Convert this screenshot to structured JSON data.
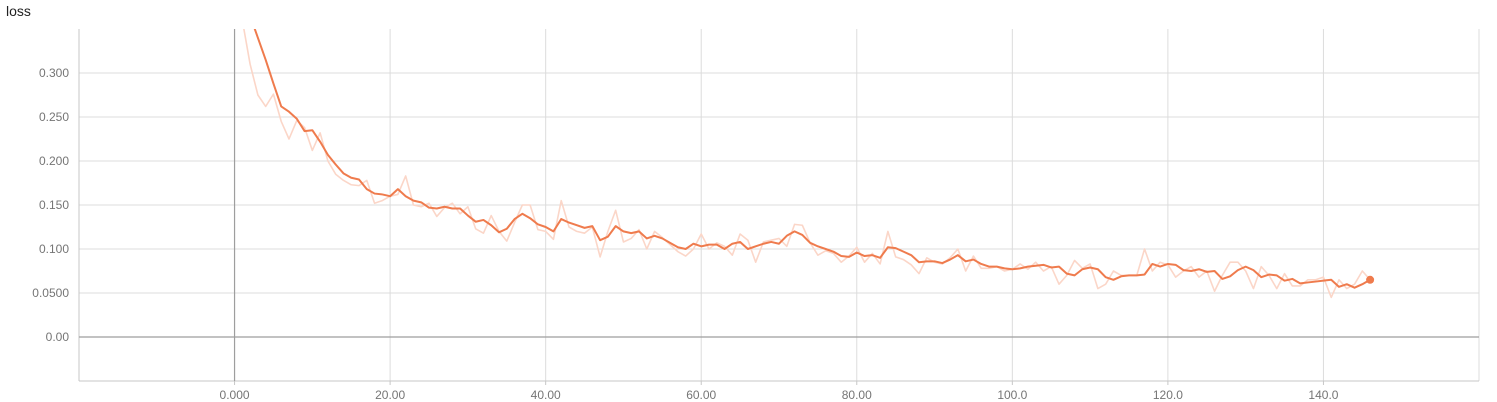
{
  "chart_data": {
    "type": "line",
    "title": "loss",
    "xlim": [
      -20,
      160
    ],
    "ylim": [
      -0.05,
      0.35
    ],
    "x_ticks": [
      0,
      20,
      40,
      60,
      80,
      100,
      120,
      140
    ],
    "x_tick_labels": [
      "0.000",
      "20.00",
      "40.00",
      "60.00",
      "80.00",
      "100.0",
      "120.0",
      "140.0"
    ],
    "y_ticks": [
      0,
      0.05,
      0.1,
      0.15,
      0.2,
      0.25,
      0.3
    ],
    "y_tick_labels": [
      "0.00",
      "0.0500",
      "0.100",
      "0.150",
      "0.200",
      "0.250",
      "0.300"
    ],
    "grid": true,
    "colors": {
      "raw": "#fbd6c8",
      "smoothed": "#ef7b4d",
      "grid": "#dcdcdc",
      "zero_axis": "#9e9e9e"
    },
    "series": [
      {
        "role": "raw",
        "x": [
          1,
          2,
          3,
          4,
          5,
          6,
          7,
          8,
          9,
          10,
          11,
          12,
          13,
          14,
          15,
          16,
          17,
          18,
          19,
          20,
          21,
          22,
          23,
          24,
          25,
          26,
          27,
          28,
          29,
          30,
          31,
          32,
          33,
          34,
          35,
          36,
          37,
          38,
          39,
          40,
          41,
          42,
          43,
          44,
          45,
          46,
          47,
          48,
          49,
          50,
          51,
          52,
          53,
          54,
          55,
          56,
          57,
          58,
          59,
          60,
          61,
          62,
          63,
          64,
          65,
          66,
          67,
          68,
          69,
          70,
          71,
          72,
          73,
          74,
          75,
          76,
          77,
          78,
          79,
          80,
          81,
          82,
          83,
          84,
          85,
          86,
          87,
          88,
          89,
          90,
          91,
          92,
          93,
          94,
          95,
          96,
          97,
          98,
          99,
          100,
          101,
          102,
          103,
          104,
          105,
          106,
          107,
          108,
          109,
          110,
          111,
          112,
          113,
          114,
          115,
          116,
          117,
          118,
          119,
          120,
          121,
          122,
          123,
          124,
          125,
          126,
          127,
          128,
          129,
          130,
          131,
          132,
          133,
          134,
          135,
          136,
          137,
          138,
          139,
          140,
          141,
          142,
          143,
          144,
          145,
          146
        ],
        "y": [
          0.36,
          0.31,
          0.275,
          0.262,
          0.276,
          0.245,
          0.225,
          0.246,
          0.238,
          0.212,
          0.232,
          0.2,
          0.185,
          0.178,
          0.173,
          0.172,
          0.178,
          0.152,
          0.155,
          0.16,
          0.162,
          0.183,
          0.15,
          0.148,
          0.152,
          0.137,
          0.147,
          0.152,
          0.14,
          0.148,
          0.123,
          0.118,
          0.138,
          0.12,
          0.109,
          0.13,
          0.15,
          0.15,
          0.122,
          0.12,
          0.111,
          0.155,
          0.125,
          0.12,
          0.118,
          0.125,
          0.091,
          0.12,
          0.144,
          0.108,
          0.112,
          0.122,
          0.1,
          0.12,
          0.113,
          0.105,
          0.097,
          0.092,
          0.1,
          0.117,
          0.1,
          0.107,
          0.103,
          0.093,
          0.117,
          0.11,
          0.085,
          0.108,
          0.11,
          0.112,
          0.103,
          0.128,
          0.127,
          0.107,
          0.093,
          0.098,
          0.095,
          0.085,
          0.092,
          0.102,
          0.085,
          0.095,
          0.083,
          0.12,
          0.091,
          0.088,
          0.082,
          0.072,
          0.09,
          0.085,
          0.083,
          0.09,
          0.1,
          0.075,
          0.092,
          0.078,
          0.078,
          0.08,
          0.075,
          0.077,
          0.083,
          0.077,
          0.085,
          0.075,
          0.08,
          0.06,
          0.07,
          0.087,
          0.078,
          0.083,
          0.055,
          0.06,
          0.075,
          0.07,
          0.07,
          0.07,
          0.1,
          0.075,
          0.085,
          0.082,
          0.068,
          0.075,
          0.08,
          0.068,
          0.075,
          0.052,
          0.07,
          0.085,
          0.085,
          0.075,
          0.055,
          0.08,
          0.07,
          0.055,
          0.072,
          0.058,
          0.058,
          0.065,
          0.065,
          0.068,
          0.045,
          0.065,
          0.055,
          0.06,
          0.075,
          0.065
        ]
      },
      {
        "role": "smoothed",
        "x": [
          1,
          2,
          3,
          4,
          5,
          6,
          7,
          8,
          9,
          10,
          11,
          12,
          13,
          14,
          15,
          16,
          17,
          18,
          19,
          20,
          21,
          22,
          23,
          24,
          25,
          26,
          27,
          28,
          29,
          30,
          31,
          32,
          33,
          34,
          35,
          36,
          37,
          38,
          39,
          40,
          41,
          42,
          43,
          44,
          45,
          46,
          47,
          48,
          49,
          50,
          51,
          52,
          53,
          54,
          55,
          56,
          57,
          58,
          59,
          60,
          61,
          62,
          63,
          64,
          65,
          66,
          67,
          68,
          69,
          70,
          71,
          72,
          73,
          74,
          75,
          76,
          77,
          78,
          79,
          80,
          81,
          82,
          83,
          84,
          85,
          86,
          87,
          88,
          89,
          90,
          91,
          92,
          93,
          94,
          95,
          96,
          97,
          98,
          99,
          100,
          101,
          102,
          103,
          104,
          105,
          106,
          107,
          108,
          109,
          110,
          111,
          112,
          113,
          114,
          115,
          116,
          117,
          118,
          119,
          120,
          121,
          122,
          123,
          124,
          125,
          126,
          127,
          128,
          129,
          130,
          131,
          132,
          133,
          134,
          135,
          136,
          137,
          138,
          139,
          140,
          141,
          142,
          143,
          144,
          145,
          146
        ],
        "y": [
          0.38,
          0.365,
          0.34,
          0.315,
          0.288,
          0.262,
          0.256,
          0.248,
          0.234,
          0.235,
          0.222,
          0.207,
          0.196,
          0.186,
          0.181,
          0.179,
          0.168,
          0.163,
          0.162,
          0.16,
          0.168,
          0.16,
          0.155,
          0.153,
          0.147,
          0.146,
          0.148,
          0.146,
          0.146,
          0.138,
          0.131,
          0.133,
          0.127,
          0.119,
          0.123,
          0.134,
          0.14,
          0.135,
          0.128,
          0.125,
          0.12,
          0.134,
          0.13,
          0.127,
          0.124,
          0.126,
          0.11,
          0.114,
          0.126,
          0.12,
          0.118,
          0.12,
          0.112,
          0.115,
          0.112,
          0.107,
          0.102,
          0.1,
          0.106,
          0.103,
          0.105,
          0.105,
          0.1,
          0.106,
          0.108,
          0.1,
          0.103,
          0.106,
          0.108,
          0.106,
          0.115,
          0.12,
          0.116,
          0.107,
          0.103,
          0.1,
          0.097,
          0.092,
          0.091,
          0.096,
          0.092,
          0.093,
          0.09,
          0.102,
          0.101,
          0.097,
          0.093,
          0.085,
          0.086,
          0.086,
          0.084,
          0.088,
          0.093,
          0.086,
          0.088,
          0.083,
          0.08,
          0.08,
          0.078,
          0.077,
          0.078,
          0.08,
          0.081,
          0.082,
          0.079,
          0.08,
          0.072,
          0.07,
          0.077,
          0.079,
          0.077,
          0.068,
          0.065,
          0.069,
          0.07,
          0.07,
          0.071,
          0.083,
          0.08,
          0.083,
          0.082,
          0.076,
          0.075,
          0.077,
          0.074,
          0.075,
          0.066,
          0.069,
          0.076,
          0.08,
          0.076,
          0.068,
          0.071,
          0.07,
          0.064,
          0.066,
          0.061,
          0.062,
          0.063,
          0.064,
          0.065,
          0.057,
          0.06,
          0.056,
          0.06,
          0.065
        ]
      }
    ]
  }
}
